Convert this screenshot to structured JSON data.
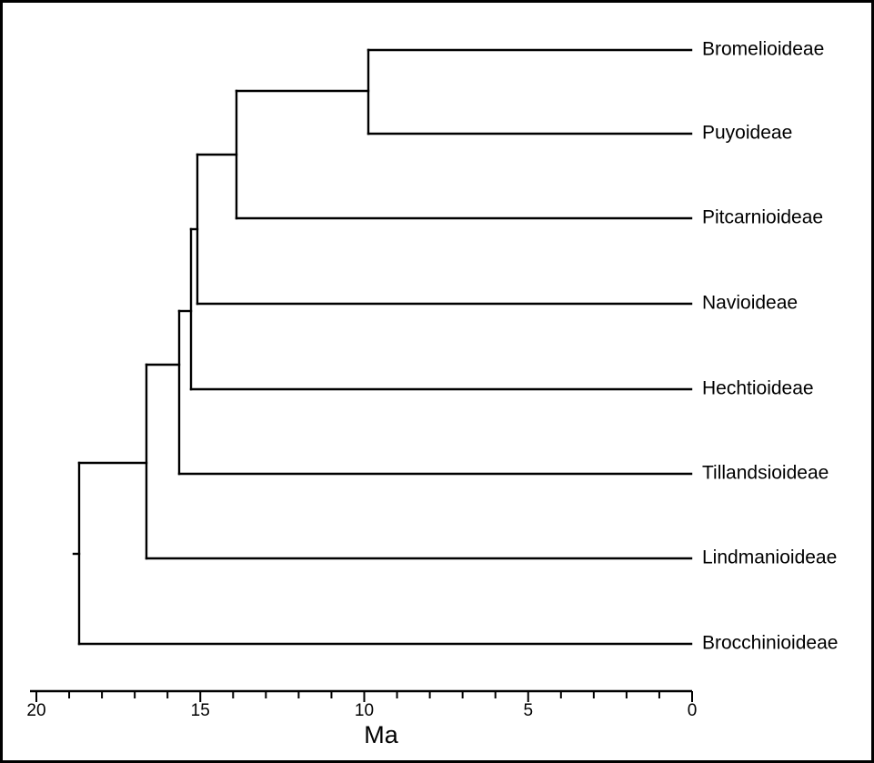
{
  "tree": {
    "taxa": [
      "Bromelioideae",
      "Puyoideae",
      "Pitcarnioideae",
      "Navioideae",
      "Hechtioideae",
      "Tillandsioideae",
      "Lindmanioideae",
      "Brocchinioideae"
    ],
    "node_ages_ma": {
      "bromelioideae_puyoideae": 9.9,
      "with_pitcarnioideae": 13.9,
      "with_navioideae": 15.1,
      "with_hechtioideae": 15.3,
      "with_tillandsioideae": 15.7,
      "with_lindmanioideae": 16.7,
      "root": 18.7
    }
  },
  "axis": {
    "title": "Ma",
    "min": 0,
    "max": 20,
    "reversed": true,
    "major_ticks": [
      20,
      15,
      10,
      5,
      0
    ],
    "minor_step": 1
  },
  "frame": {
    "border_color": "#000000",
    "background": "#ffffff"
  }
}
